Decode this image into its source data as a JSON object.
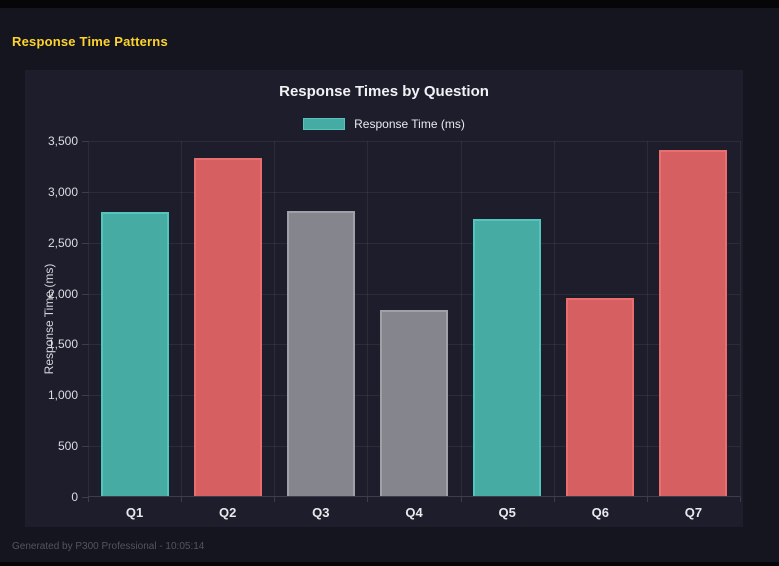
{
  "page": {
    "title": "Response Time Patterns",
    "footer": "Generated by P300 Professional - 10:05:14"
  },
  "colors": {
    "page_background": "#15151f",
    "panel_background": "#1d1d2b",
    "accent_yellow": "#ffd42a",
    "teal": "#45aba3",
    "red": "#d65f61",
    "gray": "#85858d"
  },
  "chart_data": {
    "type": "bar",
    "title": "Response Times by Question",
    "categories": [
      "Q1",
      "Q2",
      "Q3",
      "Q4",
      "Q5",
      "Q6",
      "Q7"
    ],
    "values": [
      2790,
      3320,
      2800,
      1830,
      2720,
      1950,
      3400
    ],
    "bar_colors": [
      "#45aba3",
      "#d65f61",
      "#85858d",
      "#85858d",
      "#45aba3",
      "#d65f61",
      "#d65f61"
    ],
    "bar_border_colors": [
      "#52c5bc",
      "#ea6d6f",
      "#9fa0a8",
      "#9fa0a8",
      "#52c5bc",
      "#ea6d6f",
      "#ea6d6f"
    ],
    "xlabel": "",
    "ylabel": "Response Time (ms)",
    "ylim": [
      0,
      3500
    ],
    "ytick_step": 500,
    "grid": true,
    "legend": {
      "position": "top",
      "label": "Response Time (ms)",
      "color": "#45aba3",
      "border_color": "#52c5bc"
    }
  }
}
